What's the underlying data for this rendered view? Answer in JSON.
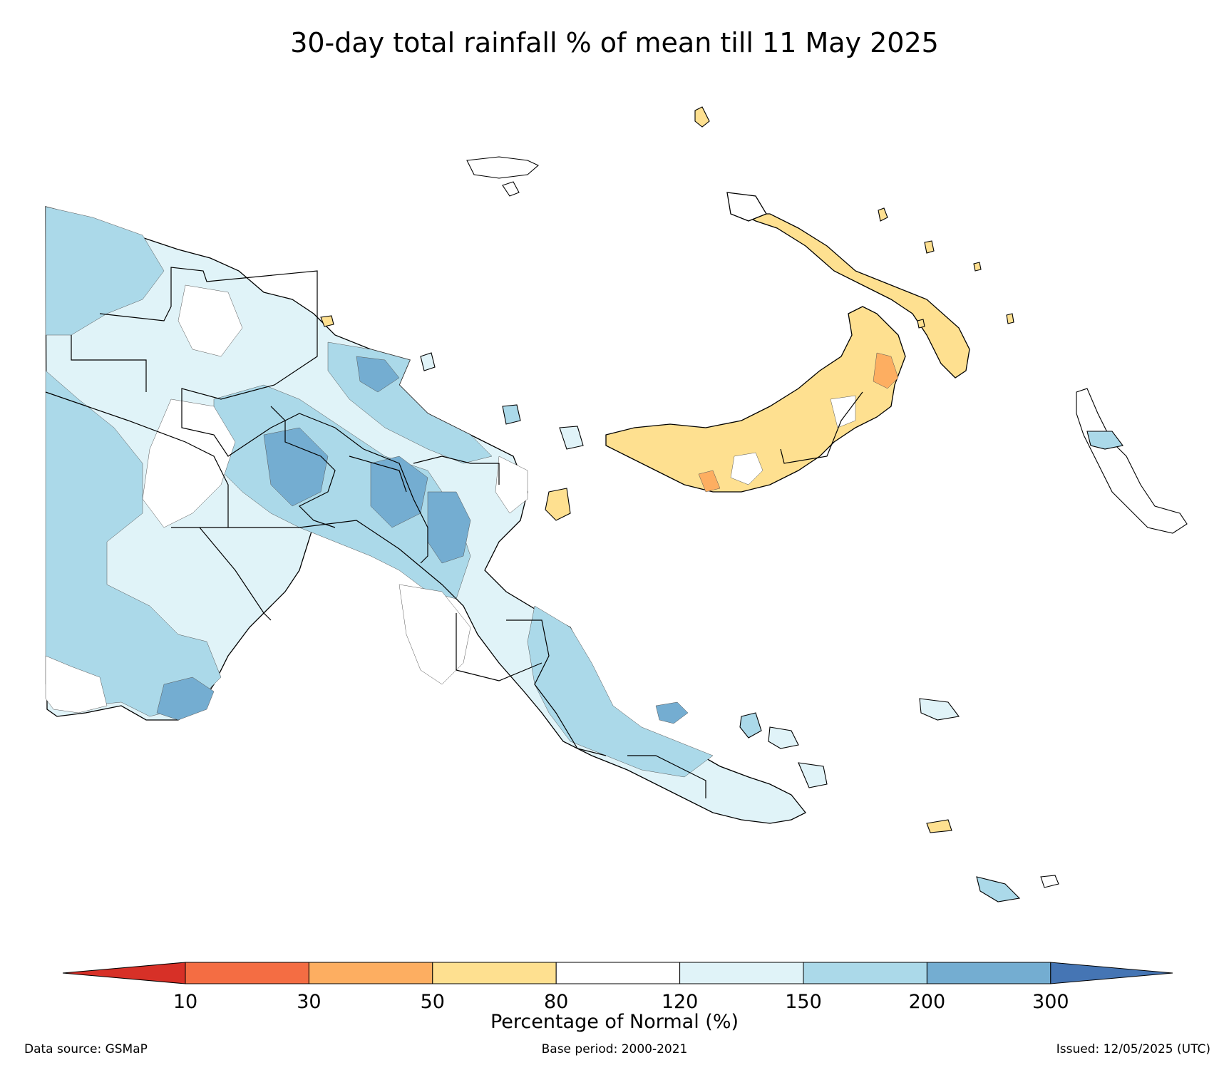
{
  "title": "30-day total rainfall % of mean till 11 May 2025",
  "colorbar": {
    "label": "Percentage of Normal (%)",
    "ticks": [
      "10",
      "30",
      "50",
      "80",
      "120",
      "150",
      "200",
      "300"
    ],
    "colors": {
      "below_10": "#d73027",
      "10-30": "#f46d43",
      "30-50": "#fdae61",
      "50-80": "#fee090",
      "80-120": "#ffffff",
      "120-150": "#e0f3f8",
      "150-200": "#abd9e9",
      "200-300": "#74add1",
      "above_300": "#4575b4"
    }
  },
  "footer": {
    "source": "Data source: GSMaP",
    "base": "Base period: 2000-2021",
    "issued": "Issued: 12/05/2025 (UTC)"
  }
}
